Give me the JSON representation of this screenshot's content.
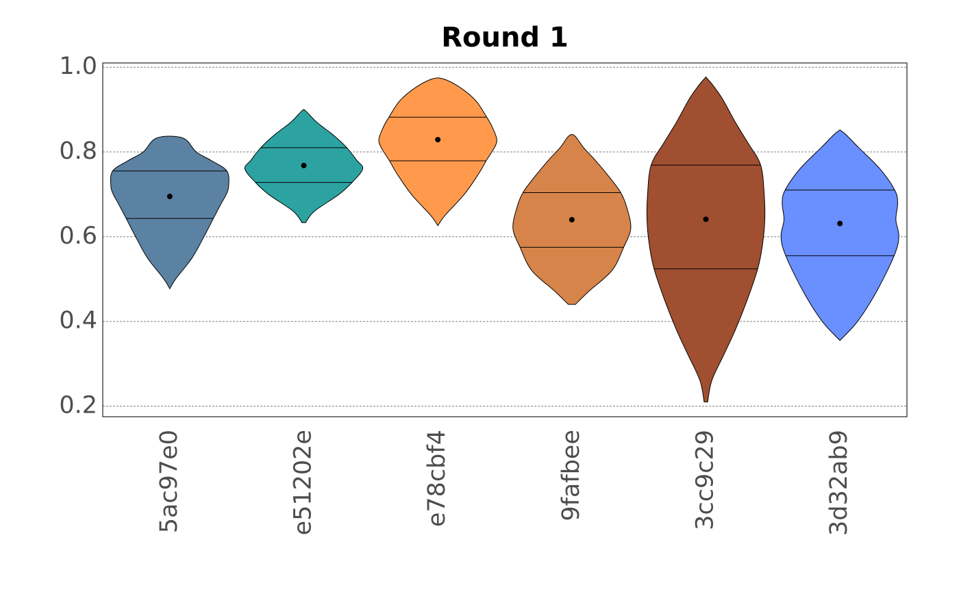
{
  "chart_data": {
    "type": "violin",
    "title": "Round 1",
    "xlabel": "",
    "ylabel": "",
    "ylim": [
      0.175,
      1.01
    ],
    "yticks": [
      0.2,
      0.4,
      0.6,
      0.8,
      1.0
    ],
    "ytick_labels": [
      "0.2",
      "0.4",
      "0.6",
      "0.8",
      "1.0"
    ],
    "grid": "horizontal dotted",
    "categories": [
      "5ac97e0",
      "e51202e",
      "e78cbf4",
      "9fafbee",
      "3cc9c29",
      "3d32ab9"
    ],
    "series": [
      {
        "category": "5ac97e0",
        "color": "#5b82a3",
        "min": 0.477,
        "max": 0.833,
        "q1": 0.643,
        "q3": 0.755,
        "mean": 0.695,
        "density": [
          [
            0.477,
            0.0
          ],
          [
            0.5,
            0.1
          ],
          [
            0.55,
            0.38
          ],
          [
            0.6,
            0.58
          ],
          [
            0.643,
            0.74
          ],
          [
            0.68,
            0.88
          ],
          [
            0.7,
            0.96
          ],
          [
            0.72,
            1.0
          ],
          [
            0.755,
            0.97
          ],
          [
            0.78,
            0.7
          ],
          [
            0.8,
            0.45
          ],
          [
            0.833,
            0.22
          ]
        ]
      },
      {
        "category": "e51202e",
        "color": "#2ca3a1",
        "min": 0.633,
        "max": 0.897,
        "q1": 0.728,
        "q3": 0.81,
        "mean": 0.768,
        "density": [
          [
            0.633,
            0.03
          ],
          [
            0.66,
            0.18
          ],
          [
            0.7,
            0.6
          ],
          [
            0.728,
            0.82
          ],
          [
            0.76,
            1.0
          ],
          [
            0.78,
            0.9
          ],
          [
            0.81,
            0.73
          ],
          [
            0.84,
            0.5
          ],
          [
            0.87,
            0.22
          ],
          [
            0.897,
            0.03
          ]
        ]
      },
      {
        "category": "e78cbf4",
        "color": "#ff9a4d",
        "min": 0.626,
        "max": 0.972,
        "q1": 0.779,
        "q3": 0.882,
        "mean": 0.829,
        "density": [
          [
            0.626,
            0.0
          ],
          [
            0.65,
            0.12
          ],
          [
            0.7,
            0.45
          ],
          [
            0.75,
            0.7
          ],
          [
            0.779,
            0.82
          ],
          [
            0.81,
            0.96
          ],
          [
            0.83,
            1.0
          ],
          [
            0.86,
            0.92
          ],
          [
            0.882,
            0.83
          ],
          [
            0.92,
            0.65
          ],
          [
            0.95,
            0.4
          ],
          [
            0.972,
            0.1
          ]
        ]
      },
      {
        "category": "9fafbee",
        "color": "#d6844a",
        "min": 0.44,
        "max": 0.838,
        "q1": 0.575,
        "q3": 0.704,
        "mean": 0.64,
        "density": [
          [
            0.44,
            0.06
          ],
          [
            0.47,
            0.28
          ],
          [
            0.52,
            0.68
          ],
          [
            0.575,
            0.88
          ],
          [
            0.62,
            1.0
          ],
          [
            0.67,
            0.93
          ],
          [
            0.704,
            0.83
          ],
          [
            0.74,
            0.64
          ],
          [
            0.78,
            0.4
          ],
          [
            0.81,
            0.2
          ],
          [
            0.838,
            0.05
          ]
        ]
      },
      {
        "category": "3cc9c29",
        "color": "#a04f31",
        "min": 0.21,
        "max": 0.972,
        "q1": 0.524,
        "q3": 0.769,
        "mean": 0.641,
        "density": [
          [
            0.21,
            0.03
          ],
          [
            0.26,
            0.1
          ],
          [
            0.32,
            0.3
          ],
          [
            0.38,
            0.5
          ],
          [
            0.45,
            0.7
          ],
          [
            0.524,
            0.88
          ],
          [
            0.58,
            0.96
          ],
          [
            0.64,
            1.0
          ],
          [
            0.7,
            0.99
          ],
          [
            0.769,
            0.93
          ],
          [
            0.82,
            0.72
          ],
          [
            0.87,
            0.5
          ],
          [
            0.93,
            0.26
          ],
          [
            0.972,
            0.03
          ]
        ]
      },
      {
        "category": "3d32ab9",
        "color": "#6a8fff",
        "min": 0.355,
        "max": 0.847,
        "q1": 0.555,
        "q3": 0.71,
        "mean": 0.631,
        "density": [
          [
            0.355,
            0.0
          ],
          [
            0.4,
            0.3
          ],
          [
            0.47,
            0.62
          ],
          [
            0.555,
            0.92
          ],
          [
            0.6,
            1.0
          ],
          [
            0.64,
            0.95
          ],
          [
            0.68,
            0.98
          ],
          [
            0.71,
            0.93
          ],
          [
            0.76,
            0.68
          ],
          [
            0.81,
            0.32
          ],
          [
            0.847,
            0.05
          ]
        ]
      }
    ]
  }
}
